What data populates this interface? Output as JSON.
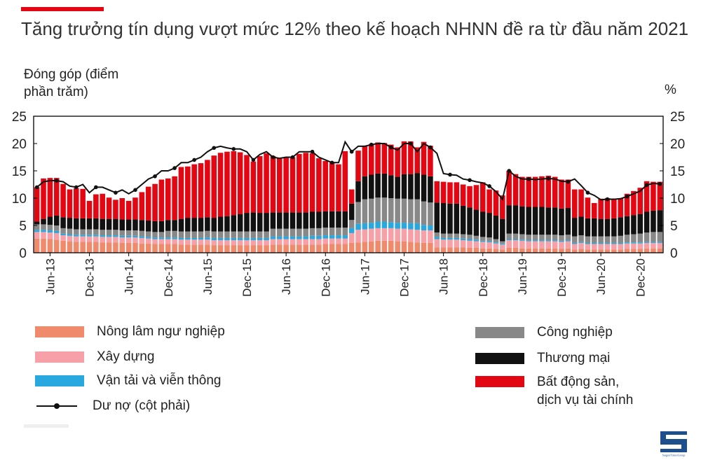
{
  "title": "Tăng trưởng tín dụng vượt mức 12% theo kế hoạch NHNN đề ra từ đầu năm 2021",
  "y_left_label": "Đóng góp (điểm phần trăm)",
  "y_right_label": "%",
  "brand": {
    "accent": "#e30613",
    "logo_icon": "saigon-times-logo",
    "logo_text": "SaigonTimesGroup"
  },
  "legend": {
    "agri": "Nông lâm ngư nghiệp",
    "construction": "Xây dựng",
    "transport": "Vận tải và viễn thông",
    "debt": "Dư nợ (cột phải)",
    "industry": "Công nghiệp",
    "commerce": "Thương mại",
    "realestate_line1": "Bất động sản,",
    "realestate_line2": "dịch vụ tài chính"
  },
  "chart_data": {
    "type": "bar",
    "stacked": true,
    "title": "Tăng trưởng tín dụng vượt mức 12% theo kế hoạch NHNN đề ra từ đầu năm 2021",
    "ylabel": "Đóng góp (điểm phần trăm)",
    "y2label": "%",
    "ylim": [
      0,
      25
    ],
    "yticks": [
      0,
      5,
      10,
      15,
      20,
      25
    ],
    "x_tick_labels": [
      "Jun-13",
      "Dec-13",
      "Jun-14",
      "Dec-14",
      "Jun-15",
      "Dec-15",
      "Jun-16",
      "Dec-16",
      "Jun-17",
      "Dec-17",
      "Jun-18",
      "Dec-18",
      "Jun-19",
      "Dec-19",
      "Jun-20",
      "Dec-20"
    ],
    "period": {
      "start": "Apr-13",
      "end": "Mar-21",
      "frequency": "monthly",
      "count": 96
    },
    "colors": {
      "agri": "#f08a6c",
      "construction": "#f7a0a8",
      "transport": "#29a8e0",
      "industry": "#888888",
      "commerce": "#111111",
      "realestate": "#e30613",
      "debt": "#111111"
    },
    "series": [
      {
        "name": "Nông lâm ngư nghiệp",
        "key": "agri",
        "values": [
          2.6,
          2.6,
          2.5,
          2.4,
          2.2,
          2.1,
          2.0,
          2.0,
          2.0,
          2.0,
          1.9,
          1.9,
          1.9,
          1.8,
          1.8,
          1.8,
          1.7,
          1.7,
          1.6,
          1.6,
          1.6,
          1.6,
          1.5,
          1.5,
          1.5,
          1.5,
          1.5,
          1.4,
          1.4,
          1.4,
          1.4,
          1.4,
          1.4,
          1.4,
          1.4,
          1.4,
          1.5,
          1.5,
          1.5,
          1.5,
          1.5,
          1.5,
          1.5,
          1.5,
          1.6,
          1.6,
          1.6,
          1.6,
          1.8,
          1.9,
          2.0,
          2.1,
          2.2,
          2.2,
          2.2,
          2.1,
          2.1,
          2.0,
          1.9,
          1.8,
          1.8,
          1.0,
          1.0,
          1.0,
          1.0,
          1.0,
          0.9,
          0.9,
          0.8,
          0.8,
          0.7,
          0.6,
          0.9,
          0.9,
          0.8,
          0.8,
          0.8,
          0.8,
          0.8,
          0.8,
          0.7,
          0.8,
          0.6,
          0.7,
          0.6,
          0.6,
          0.6,
          0.6,
          0.6,
          0.6,
          0.7,
          0.7,
          0.7,
          0.8,
          0.8,
          0.8
        ]
      },
      {
        "name": "Xây dựng",
        "key": "construction",
        "values": [
          1.2,
          1.2,
          1.2,
          1.2,
          1.0,
          1.0,
          1.0,
          1.0,
          1.0,
          1.0,
          1.0,
          1.0,
          1.0,
          1.0,
          1.0,
          1.0,
          1.0,
          0.9,
          0.9,
          0.9,
          0.9,
          0.9,
          0.9,
          0.9,
          0.9,
          0.9,
          0.9,
          0.9,
          0.9,
          0.9,
          0.9,
          0.9,
          0.9,
          0.9,
          0.9,
          0.9,
          1.0,
          1.0,
          1.0,
          1.0,
          1.0,
          1.0,
          1.0,
          1.0,
          1.0,
          1.0,
          1.0,
          1.0,
          1.8,
          2.3,
          2.3,
          2.3,
          2.3,
          2.3,
          2.3,
          2.3,
          2.3,
          2.3,
          2.3,
          2.3,
          2.3,
          1.5,
          1.4,
          1.4,
          1.4,
          1.3,
          1.3,
          1.2,
          1.2,
          1.1,
          1.0,
          0.9,
          1.4,
          1.4,
          1.4,
          1.3,
          1.3,
          1.3,
          1.3,
          1.3,
          1.3,
          1.3,
          1.0,
          1.1,
          1.0,
          1.0,
          1.0,
          1.0,
          1.0,
          1.0,
          1.0,
          1.0,
          1.0,
          1.0,
          1.0,
          1.0
        ]
      },
      {
        "name": "Vận tải và viễn thông",
        "key": "transport",
        "values": [
          0.4,
          0.4,
          0.4,
          0.4,
          0.3,
          0.3,
          0.3,
          0.3,
          0.3,
          0.3,
          0.3,
          0.3,
          0.3,
          0.3,
          0.3,
          0.3,
          0.3,
          0.3,
          0.3,
          0.3,
          0.3,
          0.3,
          0.3,
          0.3,
          0.3,
          0.3,
          0.4,
          0.4,
          0.4,
          0.4,
          0.4,
          0.4,
          0.4,
          0.4,
          0.4,
          0.4,
          0.5,
          0.5,
          0.5,
          0.5,
          0.5,
          0.5,
          0.6,
          0.6,
          0.6,
          0.6,
          0.6,
          0.6,
          0.9,
          1.1,
          1.1,
          1.1,
          1.2,
          1.2,
          1.1,
          1.1,
          1.1,
          1.1,
          1.2,
          1.0,
          0.9,
          0.4,
          0.3,
          0.3,
          0.3,
          0.3,
          0.3,
          0.3,
          0.2,
          0.2,
          0.2,
          0.2,
          0.2,
          0.2,
          0.2,
          0.2,
          0.2,
          0.2,
          0.2,
          0.2,
          0.2,
          0.2,
          0.2,
          0.2,
          0.2,
          0.2,
          0.2,
          0.2,
          0.2,
          0.2,
          0.2,
          0.2,
          0.2,
          0.2,
          0.2,
          0.2
        ]
      },
      {
        "name": "Công nghiệp",
        "key": "industry",
        "values": [
          1.0,
          1.0,
          1.0,
          1.0,
          1.0,
          1.0,
          1.0,
          1.0,
          1.0,
          1.0,
          1.0,
          1.0,
          1.0,
          1.0,
          1.0,
          1.0,
          1.0,
          1.0,
          1.0,
          1.0,
          1.2,
          1.2,
          1.2,
          1.2,
          1.2,
          1.2,
          1.2,
          1.2,
          1.2,
          1.2,
          1.2,
          1.2,
          1.2,
          1.2,
          1.2,
          1.2,
          1.4,
          1.4,
          1.4,
          1.4,
          1.4,
          1.4,
          1.4,
          1.4,
          1.4,
          1.4,
          1.4,
          1.4,
          1.5,
          4.0,
          4.4,
          4.4,
          4.4,
          4.4,
          4.4,
          4.4,
          4.4,
          4.4,
          4.4,
          4.3,
          4.2,
          0.8,
          0.8,
          0.8,
          0.8,
          0.8,
          0.8,
          0.7,
          0.7,
          0.7,
          0.6,
          0.4,
          1.0,
          1.0,
          1.0,
          1.0,
          1.0,
          1.0,
          1.0,
          1.0,
          1.0,
          1.0,
          1.2,
          1.2,
          1.2,
          1.2,
          1.2,
          1.2,
          1.2,
          1.3,
          1.4,
          1.5,
          1.6,
          1.7,
          1.8,
          1.8
        ]
      },
      {
        "name": "Thương mại",
        "key": "commerce",
        "values": [
          0.5,
          1.0,
          1.5,
          1.8,
          2.0,
          2.0,
          2.0,
          2.0,
          2.0,
          2.0,
          2.0,
          2.0,
          2.0,
          2.0,
          2.0,
          2.0,
          2.0,
          2.0,
          2.0,
          2.0,
          2.0,
          2.0,
          2.3,
          2.5,
          2.5,
          2.5,
          2.5,
          2.5,
          2.7,
          2.8,
          3.0,
          3.2,
          3.4,
          3.5,
          3.4,
          3.4,
          3.0,
          3.0,
          3.0,
          3.0,
          3.0,
          3.0,
          3.0,
          3.0,
          3.0,
          3.0,
          3.0,
          3.0,
          3.0,
          3.8,
          4.2,
          4.4,
          4.4,
          4.4,
          4.2,
          4.0,
          4.5,
          4.6,
          4.8,
          4.9,
          4.8,
          5.5,
          5.6,
          5.5,
          5.5,
          5.2,
          5.0,
          4.8,
          4.6,
          4.5,
          4.3,
          4.1,
          5.2,
          5.2,
          5.1,
          5.1,
          5.1,
          5.1,
          5.0,
          5.0,
          4.9,
          4.9,
          3.4,
          3.4,
          3.3,
          3.3,
          3.2,
          3.2,
          3.3,
          3.4,
          3.4,
          3.5,
          3.6,
          3.8,
          3.9,
          4.0
        ]
      },
      {
        "name": "Bất động sản, dịch vụ tài chính",
        "key": "realestate",
        "values": [
          6.3,
          7.4,
          7.1,
          6.9,
          6.1,
          5.2,
          5.5,
          5.4,
          3.2,
          4.4,
          4.6,
          3.9,
          3.5,
          3.9,
          3.4,
          4.0,
          5.1,
          6.2,
          6.8,
          7.6,
          7.6,
          8.0,
          9.5,
          9.4,
          9.8,
          10.0,
          10.5,
          11.4,
          11.7,
          11.8,
          11.7,
          11.3,
          10.6,
          9.3,
          10.4,
          10.9,
          10.3,
          9.9,
          10.1,
          10.1,
          10.7,
          10.9,
          10.7,
          9.8,
          9.2,
          8.9,
          8.6,
          11.0,
          2.6,
          5.6,
          5.6,
          5.6,
          5.7,
          5.6,
          5.6,
          5.4,
          6.0,
          6.0,
          4.7,
          6.0,
          5.6,
          3.9,
          3.9,
          3.9,
          3.9,
          3.9,
          3.9,
          4.5,
          5.4,
          4.3,
          4.6,
          4.3,
          6.3,
          5.7,
          5.4,
          5.5,
          5.5,
          5.6,
          5.8,
          5.6,
          5.3,
          5.2,
          5.2,
          5.0,
          3.8,
          2.8,
          3.7,
          3.8,
          3.6,
          3.5,
          4.1,
          4.4,
          4.8,
          5.6,
          5.3,
          5.2
        ]
      }
    ],
    "line": {
      "name": "Dư nợ (cột phải)",
      "key": "debt",
      "axis": "right",
      "values": [
        12.0,
        13.0,
        13.2,
        13.2,
        13.0,
        12.2,
        12.0,
        12.5,
        11.0,
        12.0,
        12.0,
        11.5,
        11.0,
        11.5,
        10.8,
        11.5,
        12.5,
        13.5,
        14.0,
        15.0,
        15.0,
        15.5,
        16.5,
        16.5,
        17.0,
        17.5,
        18.5,
        19.2,
        19.5,
        19.2,
        19.0,
        19.0,
        18.5,
        17.0,
        18.0,
        18.5,
        17.5,
        17.3,
        17.5,
        17.5,
        18.5,
        18.5,
        18.5,
        17.5,
        17.0,
        16.5,
        16.5,
        20.3,
        18.5,
        19.5,
        19.5,
        19.8,
        20.0,
        20.0,
        19.3,
        18.8,
        20.0,
        20.0,
        18.5,
        20.0,
        19.3,
        18.2,
        14.5,
        14.3,
        14.2,
        13.5,
        13.3,
        13.0,
        12.8,
        12.2,
        11.2,
        9.8,
        15.0,
        14.0,
        13.5,
        13.5,
        13.4,
        13.5,
        13.6,
        13.5,
        13.1,
        13.0,
        13.5,
        12.3,
        11.0,
        10.5,
        9.7,
        9.8,
        9.8,
        9.9,
        10.3,
        10.8,
        11.3,
        12.4,
        12.7,
        12.6
      ]
    }
  }
}
